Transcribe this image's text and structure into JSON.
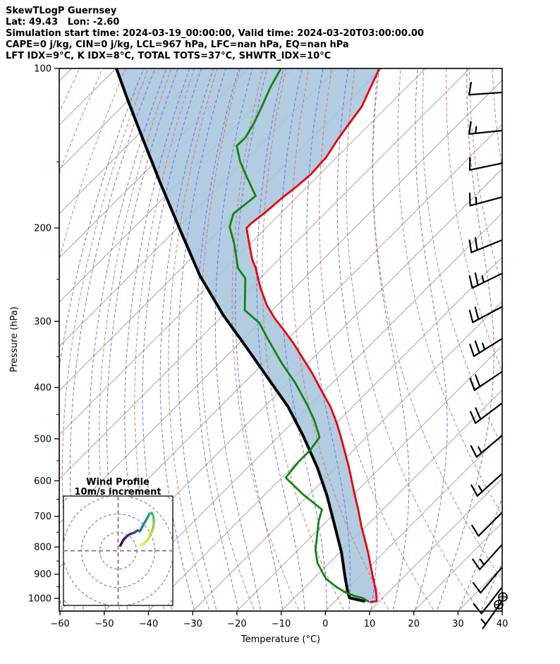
{
  "header": {
    "lines": [
      "SkewTLogP Guernsey",
      "Lat: 49.43   Lon: -2.60",
      "Simulation start time: 2024-03-19_00:00:00, Valid time: 2024-03-20T03:00:00.00",
      "CAPE=0 j/kg, CIN=0 j/kg, LCL=967 hPa, LFC=nan hPa, EQ=nan hPa",
      "LFT IDX=9°C, K IDX=8°C, TOTAL TOTS=37°C, SHWTR_IDX=10°C"
    ]
  },
  "axes": {
    "x": {
      "label": "Temperature (°C)",
      "tick_values": [
        -60,
        -50,
        -40,
        -30,
        -20,
        -10,
        0,
        10,
        20,
        30,
        40
      ],
      "tick_labels": [
        "−60",
        "−50",
        "−40",
        "−30",
        "−20",
        "−10",
        "0",
        "10",
        "20",
        "30",
        "40"
      ],
      "min": -60,
      "max": 40
    },
    "y": {
      "label": "Pressure (hPa)",
      "tick_values": [
        100,
        200,
        300,
        400,
        500,
        600,
        700,
        800,
        900,
        1000
      ],
      "tick_labels": [
        "100",
        "200",
        "300",
        "400",
        "500",
        "600",
        "700",
        "800",
        "900",
        "1000"
      ],
      "minor_ticks": [
        150,
        250,
        350,
        450,
        550,
        650,
        750,
        850,
        950
      ],
      "min": 100,
      "max": 1050,
      "scale": "log"
    }
  },
  "colors": {
    "temperature": "#e8000b",
    "dewpoint": "#108410",
    "parcel": "#000000",
    "cape_fill": "#a5c4dc",
    "isotherm": "#9a9a9a",
    "dry_adiabat": "#e06a6a",
    "moist_adiabat": "#6a6ad8",
    "barb": "#000000",
    "inset_grid": "#888888",
    "viridis": [
      "#440154",
      "#472d7b",
      "#3b528b",
      "#2c728e",
      "#21918c",
      "#28ae80",
      "#5ec962",
      "#addc30",
      "#fde725"
    ]
  },
  "chart_data": {
    "type": "skewt_logp",
    "skew_deg": 45,
    "isotherms": {
      "min": -190,
      "max": 40,
      "step": 10
    },
    "dry_adiabats": {
      "theta_min": -100,
      "theta_max": 100,
      "step": 10
    },
    "moist_adiabats": {
      "thetaw_min": -60,
      "thetaw_max": 40,
      "step": 5
    },
    "temperature_profile": [
      [
        100,
        -110.4
      ],
      [
        108,
        -108.3
      ],
      [
        118,
        -105.8
      ],
      [
        128,
        -104.7
      ],
      [
        137,
        -103.7
      ],
      [
        147,
        -102.4
      ],
      [
        158,
        -102.0
      ],
      [
        166,
        -102.4
      ],
      [
        176,
        -103.2
      ],
      [
        187,
        -103.7
      ],
      [
        196,
        -104.4
      ],
      [
        200,
        -104.4
      ],
      [
        215,
        -100.0
      ],
      [
        229,
        -96.1
      ],
      [
        238,
        -93.3
      ],
      [
        260,
        -87.6
      ],
      [
        280,
        -82.3
      ],
      [
        297,
        -77.4
      ],
      [
        312,
        -72.8
      ],
      [
        331,
        -67.5
      ],
      [
        352,
        -62.3
      ],
      [
        377,
        -56.5
      ],
      [
        405,
        -50.8
      ],
      [
        435,
        -45.0
      ],
      [
        467,
        -39.9
      ],
      [
        500,
        -35.3
      ],
      [
        562,
        -27.6
      ],
      [
        636,
        -19.8
      ],
      [
        680,
        -15.5
      ],
      [
        730,
        -11.1
      ],
      [
        819,
        -3.6
      ],
      [
        899,
        2.2
      ],
      [
        970,
        7.0
      ],
      [
        1012,
        9.4
      ],
      [
        1016,
        8.2
      ]
    ],
    "dewpoint_profile": [
      [
        100,
        -132.7
      ],
      [
        109,
        -130.7
      ],
      [
        118,
        -128.4
      ],
      [
        127,
        -126.4
      ],
      [
        135,
        -125.1
      ],
      [
        140,
        -125.2
      ],
      [
        150,
        -120.8
      ],
      [
        160,
        -116.0
      ],
      [
        174,
        -109.6
      ],
      [
        188,
        -110.6
      ],
      [
        199,
        -108.5
      ],
      [
        214,
        -103.7
      ],
      [
        238,
        -97.3
      ],
      [
        249,
        -93.3
      ],
      [
        286,
        -86.2
      ],
      [
        302,
        -80.1
      ],
      [
        324,
        -74.5
      ],
      [
        359,
        -66.1
      ],
      [
        392,
        -58.4
      ],
      [
        426,
        -51.7
      ],
      [
        460,
        -45.8
      ],
      [
        492,
        -41.2
      ],
      [
        497,
        -40.6
      ],
      [
        525,
        -39.8
      ],
      [
        553,
        -39.8
      ],
      [
        592,
        -39.1
      ],
      [
        636,
        -31.5
      ],
      [
        680,
        -23.7
      ],
      [
        714,
        -21.9
      ],
      [
        811,
        -16.0
      ],
      [
        858,
        -12.6
      ],
      [
        918,
        -7.2
      ],
      [
        952,
        -2.9
      ],
      [
        975,
        0.4
      ],
      [
        990,
        3.3
      ],
      [
        998,
        5.4
      ],
      [
        1014,
        7.6
      ]
    ],
    "parcel_profile": [
      [
        100,
        -169.9
      ],
      [
        115,
        -160.0
      ],
      [
        136,
        -147.9
      ],
      [
        164,
        -134.3
      ],
      [
        199,
        -120.0
      ],
      [
        246,
        -104.2
      ],
      [
        292,
        -90.0
      ],
      [
        335,
        -77.7
      ],
      [
        382,
        -66.1
      ],
      [
        435,
        -54.6
      ],
      [
        493,
        -44.7
      ],
      [
        566,
        -34.3
      ],
      [
        641,
        -25.6
      ],
      [
        730,
        -17.1
      ],
      [
        819,
        -9.6
      ],
      [
        918,
        -2.8
      ],
      [
        975,
        0.9
      ],
      [
        998,
        2.5
      ],
      [
        1012,
        6.5
      ]
    ],
    "cape_fill_between": [
      "parcel_profile",
      "temperature_profile"
    ],
    "wind_barbs": [
      {
        "p": 111,
        "angle": 4,
        "full": 1,
        "half": 0
      },
      {
        "p": 131,
        "angle": 6,
        "full": 1,
        "half": 1
      },
      {
        "p": 151,
        "angle": 12,
        "full": 1,
        "half": 0
      },
      {
        "p": 175,
        "angle": 15,
        "full": 1,
        "half": 1
      },
      {
        "p": 211,
        "angle": 22,
        "full": 2,
        "half": 0
      },
      {
        "p": 244,
        "angle": 26,
        "full": 2,
        "half": 1
      },
      {
        "p": 282,
        "angle": 28,
        "full": 2,
        "half": 0
      },
      {
        "p": 324,
        "angle": 32,
        "full": 2,
        "half": 1
      },
      {
        "p": 374,
        "angle": 34,
        "full": 2,
        "half": 0
      },
      {
        "p": 429,
        "angle": 37,
        "full": 2,
        "half": 0
      },
      {
        "p": 494,
        "angle": 40,
        "full": 1,
        "half": 1
      },
      {
        "p": 583,
        "angle": 42,
        "full": 1,
        "half": 1
      },
      {
        "p": 690,
        "angle": 45,
        "full": 1,
        "half": 0
      },
      {
        "p": 794,
        "angle": 48,
        "full": 1,
        "half": 1
      },
      {
        "p": 876,
        "angle": 50,
        "full": 1,
        "half": 0
      },
      {
        "p": 956,
        "angle": 52,
        "full": 1,
        "half": 0
      },
      {
        "p": 1015,
        "angle": 55,
        "full": 0,
        "half": 1
      }
    ],
    "surface_symbol": "circled-plus-pair",
    "hodograph": {
      "title": "Wind Profile",
      "subtitle": "10m/s increment",
      "ring_increment_ms": 10,
      "trace_uv": [
        [
          1.2,
          2.8
        ],
        [
          2.9,
          6.0
        ],
        [
          4.8,
          7.9
        ],
        [
          6.7,
          9.2
        ],
        [
          8.7,
          9.8
        ],
        [
          10.6,
          11.1
        ],
        [
          11.7,
          10.6
        ],
        [
          12.5,
          11.7
        ],
        [
          13.8,
          14.3
        ],
        [
          15.7,
          17.5
        ],
        [
          17.0,
          20.1
        ],
        [
          18.3,
          20.7
        ],
        [
          19.2,
          18.8
        ],
        [
          19.5,
          15.6
        ],
        [
          18.9,
          11.7
        ],
        [
          17.0,
          7.2
        ],
        [
          14.4,
          4.0
        ],
        [
          12.5,
          3.2
        ]
      ]
    }
  }
}
